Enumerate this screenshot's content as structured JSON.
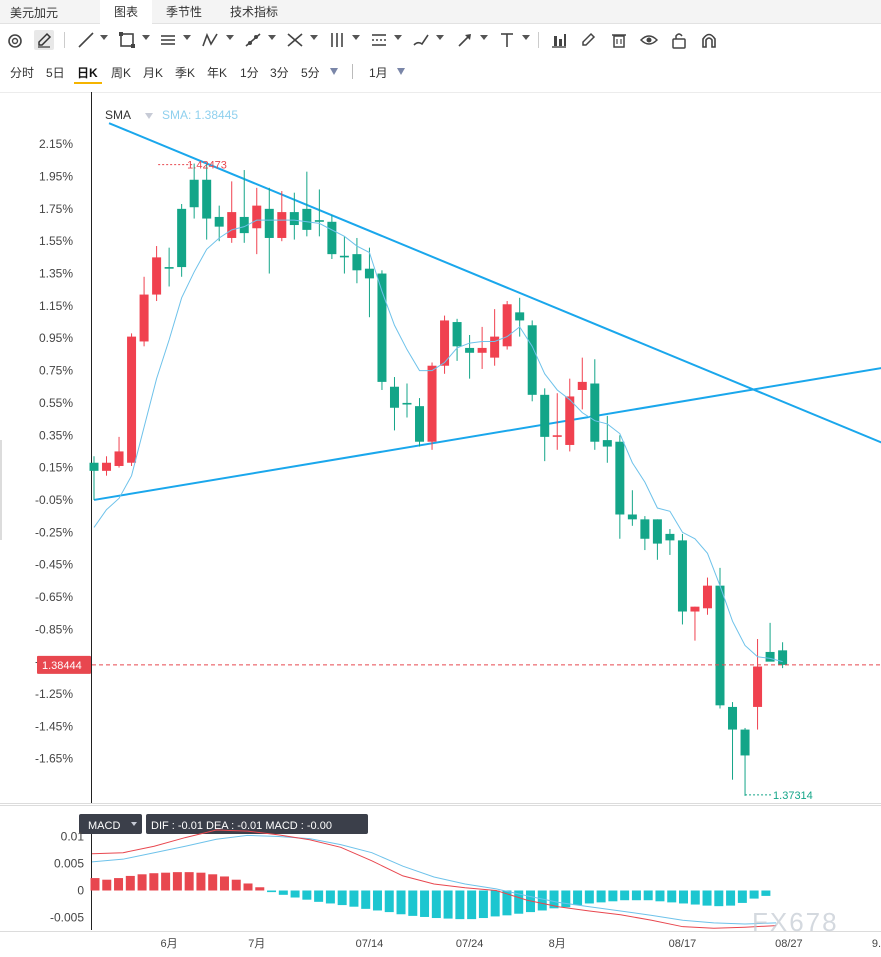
{
  "topbar": {
    "title": "美元加元",
    "tabs": [
      {
        "label": "图表",
        "active": true
      },
      {
        "label": "季节性",
        "active": false
      },
      {
        "label": "技术指标",
        "active": false
      }
    ]
  },
  "toolbar": {
    "tools": [
      "target-icon",
      "pencil-active-icon",
      "line-icon",
      "rectangle-icon",
      "parallel-lines-icon",
      "zigzag-icon",
      "segment-icon",
      "cross-lines-icon",
      "vertical-lines-icon",
      "horizontal-lines-icon",
      "brush-icon",
      "arrow-icon",
      "text-icon",
      "bar-chart-icon",
      "edit-icon",
      "trash-icon",
      "eye-icon",
      "lock-icon",
      "magnet-icon"
    ]
  },
  "periods": {
    "items": [
      "分时",
      "5日",
      "日K",
      "周K",
      "月K",
      "季K",
      "年K",
      "1分",
      "3分",
      "5分"
    ],
    "active": "日K",
    "range": "1月"
  },
  "colors": {
    "up": "#f0414f",
    "down": "#13a588",
    "trendline": "#1aa7ec",
    "sma": "#6ec2ea",
    "dif": "#e8474f",
    "dea": "#6ec2ea",
    "hist_neg": "#1cc6d0",
    "current": "#e8474f"
  },
  "chart_data": {
    "type": "candlestick",
    "price_axis_ticks": [
      "2.15%",
      "1.95%",
      "1.75%",
      "1.55%",
      "1.35%",
      "1.15%",
      "0.95%",
      "0.75%",
      "0.55%",
      "0.35%",
      "0.15%",
      "-0.05%",
      "-0.25%",
      "-0.45%",
      "-0.65%",
      "-0.85%",
      "-1.05%",
      "-1.25%",
      "-1.45%",
      "-1.65%"
    ],
    "y_range_pct": [
      -1.72,
      2.25
    ],
    "x_labels": [
      "6月",
      "7月",
      "07/14",
      "07/24",
      "8月",
      "08/17",
      "08/27",
      "9."
    ],
    "sma_label": "SMA",
    "sma_value": "SMA: 1.38445",
    "current_price": "1.38444",
    "max_label": "1.42473",
    "min_label": "1.37314",
    "candles_pct": [
      [
        0.18,
        0.13,
        0.22,
        -0.05
      ],
      [
        0.13,
        0.18,
        0.22,
        0.1
      ],
      [
        0.16,
        0.25,
        0.34,
        0.15
      ],
      [
        0.18,
        0.96,
        0.98,
        0.16
      ],
      [
        0.93,
        1.22,
        1.33,
        0.9
      ],
      [
        1.22,
        1.45,
        1.52,
        1.18
      ],
      [
        1.39,
        1.38,
        1.51,
        1.27
      ],
      [
        1.75,
        1.39,
        1.78,
        1.33
      ],
      [
        1.93,
        1.76,
        2.03,
        1.69
      ],
      [
        1.93,
        1.69,
        2.03,
        1.56
      ],
      [
        1.7,
        1.64,
        1.77,
        1.55
      ],
      [
        1.57,
        1.73,
        1.92,
        1.54
      ],
      [
        1.7,
        1.6,
        1.99,
        1.54
      ],
      [
        1.63,
        1.77,
        1.88,
        1.47
      ],
      [
        1.75,
        1.57,
        1.88,
        1.35
      ],
      [
        1.57,
        1.73,
        1.86,
        1.55
      ],
      [
        1.73,
        1.65,
        1.85,
        1.56
      ],
      [
        1.75,
        1.62,
        1.98,
        1.58
      ],
      [
        1.68,
        1.67,
        1.87,
        1.58
      ],
      [
        1.67,
        1.47,
        1.71,
        1.44
      ],
      [
        1.46,
        1.45,
        1.58,
        1.35
      ],
      [
        1.47,
        1.37,
        1.57,
        1.29
      ],
      [
        1.38,
        1.32,
        1.51,
        1.08
      ],
      [
        1.35,
        0.68,
        1.37,
        0.63
      ],
      [
        0.65,
        0.52,
        0.71,
        0.38
      ],
      [
        0.55,
        0.54,
        0.67,
        0.46
      ],
      [
        0.53,
        0.31,
        0.58,
        0.28
      ],
      [
        0.31,
        0.78,
        0.8,
        0.26
      ],
      [
        0.78,
        1.06,
        1.09,
        0.73
      ],
      [
        1.05,
        0.9,
        1.07,
        0.81
      ],
      [
        0.89,
        0.86,
        0.97,
        0.7
      ],
      [
        0.86,
        0.89,
        1.02,
        0.76
      ],
      [
        0.83,
        0.96,
        1.13,
        0.78
      ],
      [
        0.9,
        1.16,
        1.18,
        0.88
      ],
      [
        1.11,
        1.06,
        1.2,
        0.96
      ],
      [
        1.03,
        0.6,
        1.06,
        0.56
      ],
      [
        0.6,
        0.34,
        0.64,
        0.19
      ],
      [
        0.34,
        0.35,
        0.61,
        0.26
      ],
      [
        0.29,
        0.59,
        0.7,
        0.25
      ],
      [
        0.63,
        0.68,
        0.83,
        0.51
      ],
      [
        0.67,
        0.31,
        0.82,
        0.26
      ],
      [
        0.32,
        0.28,
        0.47,
        0.18
      ],
      [
        0.31,
        -0.14,
        0.35,
        -0.29
      ],
      [
        -0.14,
        -0.17,
        0.01,
        -0.21
      ],
      [
        -0.17,
        -0.29,
        -0.15,
        -0.36
      ],
      [
        -0.17,
        -0.32,
        -0.17,
        -0.42
      ],
      [
        -0.26,
        -0.3,
        -0.23,
        -0.39
      ],
      [
        -0.3,
        -0.74,
        -0.26,
        -0.82
      ],
      [
        -0.74,
        -0.71,
        -0.71,
        -0.92
      ],
      [
        -0.72,
        -0.58,
        -0.53,
        -0.76
      ],
      [
        -0.58,
        -1.32,
        -0.47,
        -1.34
      ],
      [
        -1.33,
        -1.47,
        -1.3,
        -1.78
      ],
      [
        -1.47,
        -1.63,
        -1.46,
        -1.88
      ],
      [
        -1.33,
        -1.08,
        -0.91,
        -1.47
      ],
      [
        -0.99,
        -1.05,
        -0.81,
        -1.01
      ],
      [
        -0.98,
        -1.07,
        -0.93,
        -1.09
      ]
    ],
    "sma_pct": [
      -0.22,
      -0.11,
      -0.04,
      0.1,
      0.4,
      0.7,
      0.94,
      1.2,
      1.36,
      1.5,
      1.57,
      1.62,
      1.64,
      1.68,
      1.68,
      1.68,
      1.68,
      1.67,
      1.66,
      1.62,
      1.58,
      1.52,
      1.48,
      1.24,
      1.03,
      0.88,
      0.75,
      0.75,
      0.8,
      0.89,
      0.92,
      0.93,
      0.93,
      0.96,
      1.02,
      0.9,
      0.73,
      0.63,
      0.57,
      0.49,
      0.44,
      0.42,
      0.36,
      0.18,
      0.06,
      -0.1,
      -0.12,
      -0.25,
      -0.29,
      -0.38,
      -0.58,
      -0.8,
      -0.95,
      -1.02,
      -1.03,
      -1.05
    ],
    "trendlines": [
      {
        "name": "descending",
        "from": {
          "candle": 1.2,
          "pct": 2.28
        },
        "to": {
          "candle": 64.0,
          "pct": 0.27
        }
      },
      {
        "name": "ascending",
        "from": {
          "candle": 0.0,
          "pct": -0.05
        },
        "to": {
          "candle": 64.0,
          "pct": 0.78
        }
      }
    ],
    "macd": {
      "legend": "MACD",
      "values_text": "DIF : -0.01  DEA : -0.01  MACD : -0.00",
      "y_ticks": [
        "0.01",
        "0.005",
        "0",
        "-0.005"
      ],
      "y_range": [
        -0.0075,
        0.0125
      ],
      "dif": [
        0.0068,
        0.007,
        0.0082,
        0.0098,
        0.0112,
        0.011,
        0.0103,
        0.0094,
        0.008,
        0.0055,
        0.0027,
        0.0012,
        0.0005,
        0.0,
        -0.0018,
        -0.003,
        -0.0038,
        -0.0045,
        -0.0055,
        -0.0067,
        -0.007,
        -0.0068,
        -0.0065
      ],
      "dea": [
        0.0053,
        0.0058,
        0.007,
        0.0082,
        0.0095,
        0.0102,
        0.01,
        0.0096,
        0.0085,
        0.007,
        0.0045,
        0.0025,
        0.0012,
        0.0003,
        -0.001,
        -0.0022,
        -0.003,
        -0.0038,
        -0.0046,
        -0.0055,
        -0.006,
        -0.0062,
        -0.006
      ],
      "hist": [
        0.0023,
        0.002,
        0.0023,
        0.0027,
        0.003,
        0.0032,
        0.0033,
        0.0034,
        0.0034,
        0.0033,
        0.003,
        0.0026,
        0.002,
        0.0013,
        0.0006,
        -0.0003,
        -0.0008,
        -0.0013,
        -0.0017,
        -0.0021,
        -0.0024,
        -0.0027,
        -0.003,
        -0.0034,
        -0.0037,
        -0.004,
        -0.0044,
        -0.0047,
        -0.0049,
        -0.0051,
        -0.0052,
        -0.0053,
        -0.0053,
        -0.0051,
        -0.0048,
        -0.0046,
        -0.0043,
        -0.004,
        -0.0037,
        -0.0033,
        -0.0031,
        -0.0027,
        -0.0024,
        -0.0022,
        -0.002,
        -0.0018,
        -0.0018,
        -0.0018,
        -0.002,
        -0.0022,
        -0.0024,
        -0.0026,
        -0.0028,
        -0.0029,
        -0.0028,
        -0.0023,
        -0.0015,
        -0.001
      ]
    }
  },
  "watermark": "FX678"
}
